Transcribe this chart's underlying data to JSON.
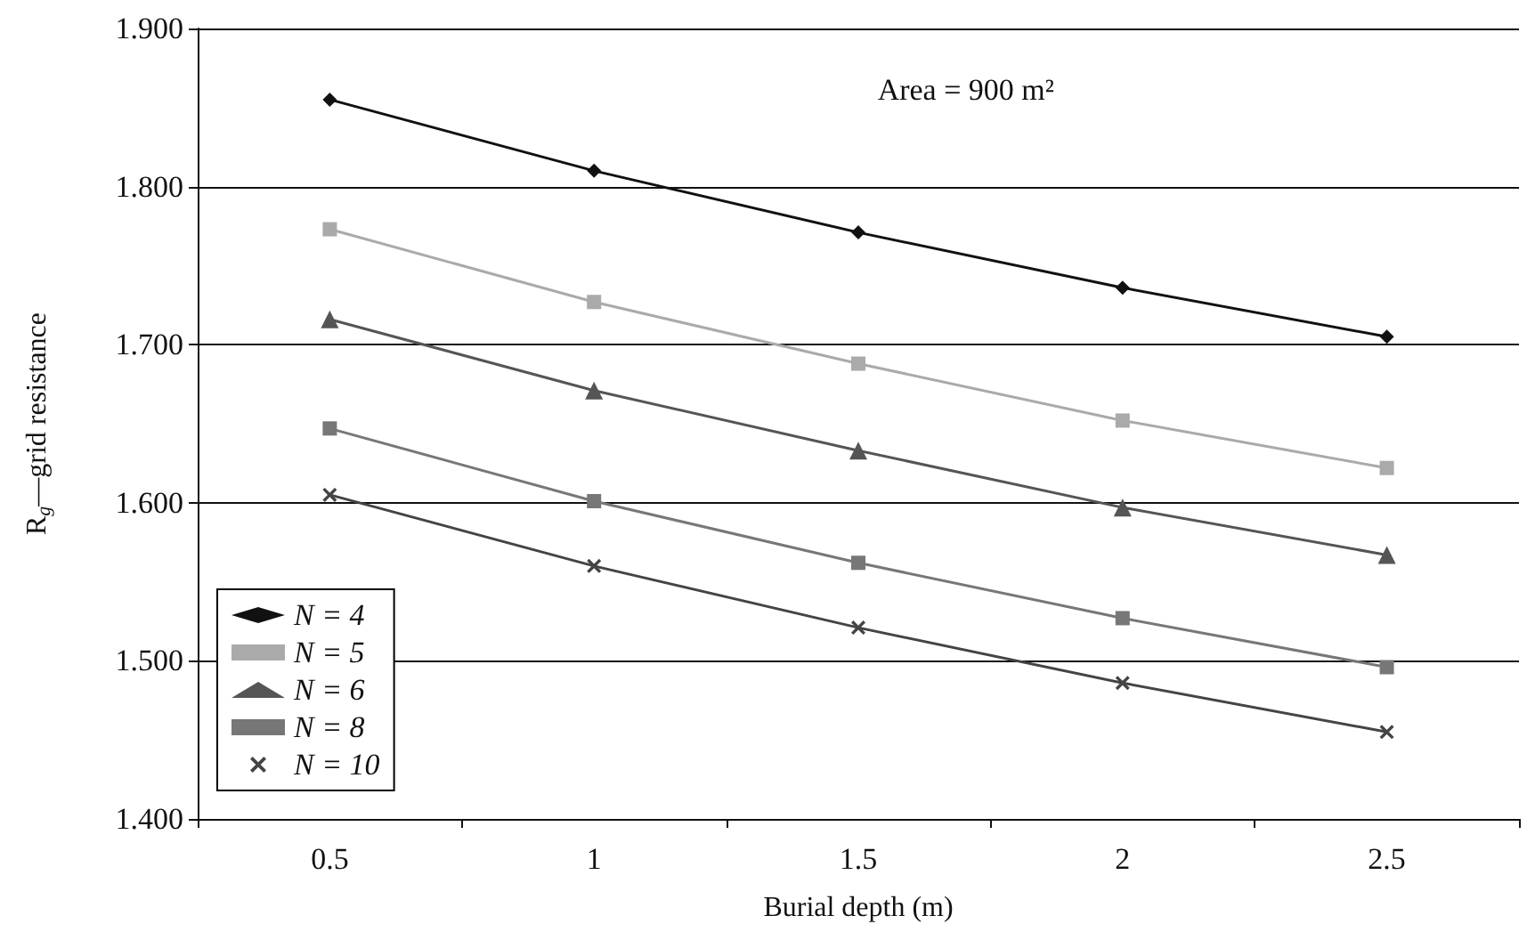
{
  "chart_data": {
    "type": "line",
    "xlabel": "Burial depth (m)",
    "ylabel": "R$_{g}$—grid resistance",
    "annotations": [
      "Area = 900 m²"
    ],
    "categories": [
      "0.5",
      "1",
      "1.5",
      "2",
      "2.5"
    ],
    "series": [
      {
        "name": "N = 4",
        "color": "#111111",
        "marker": "diamond",
        "values": [
          1.855,
          1.81,
          1.771,
          1.736,
          1.705
        ]
      },
      {
        "name": "N = 5",
        "color": "#aaaaaa",
        "marker": "square",
        "values": [
          1.773,
          1.727,
          1.688,
          1.652,
          1.622
        ]
      },
      {
        "name": "N = 6",
        "color": "#555555",
        "marker": "triangle",
        "values": [
          1.716,
          1.671,
          1.633,
          1.597,
          1.567
        ]
      },
      {
        "name": "N = 8",
        "color": "#777777",
        "marker": "square",
        "values": [
          1.647,
          1.601,
          1.562,
          1.527,
          1.496
        ]
      },
      {
        "name": "N = 10",
        "color": "#444444",
        "marker": "cross",
        "values": [
          1.605,
          1.56,
          1.521,
          1.486,
          1.455
        ]
      }
    ],
    "ylim": [
      1.4,
      1.9
    ],
    "yticks": [
      {
        "value": 1.4,
        "label": "1.400"
      },
      {
        "value": 1.5,
        "label": "1.500"
      },
      {
        "value": 1.6,
        "label": "1.600"
      },
      {
        "value": 1.7,
        "label": "1.700"
      },
      {
        "value": 1.8,
        "label": "1.800"
      },
      {
        "value": 1.9,
        "label": "1.900"
      }
    ],
    "grid": "y",
    "legend": "bottom left",
    "line_style": "solid"
  }
}
